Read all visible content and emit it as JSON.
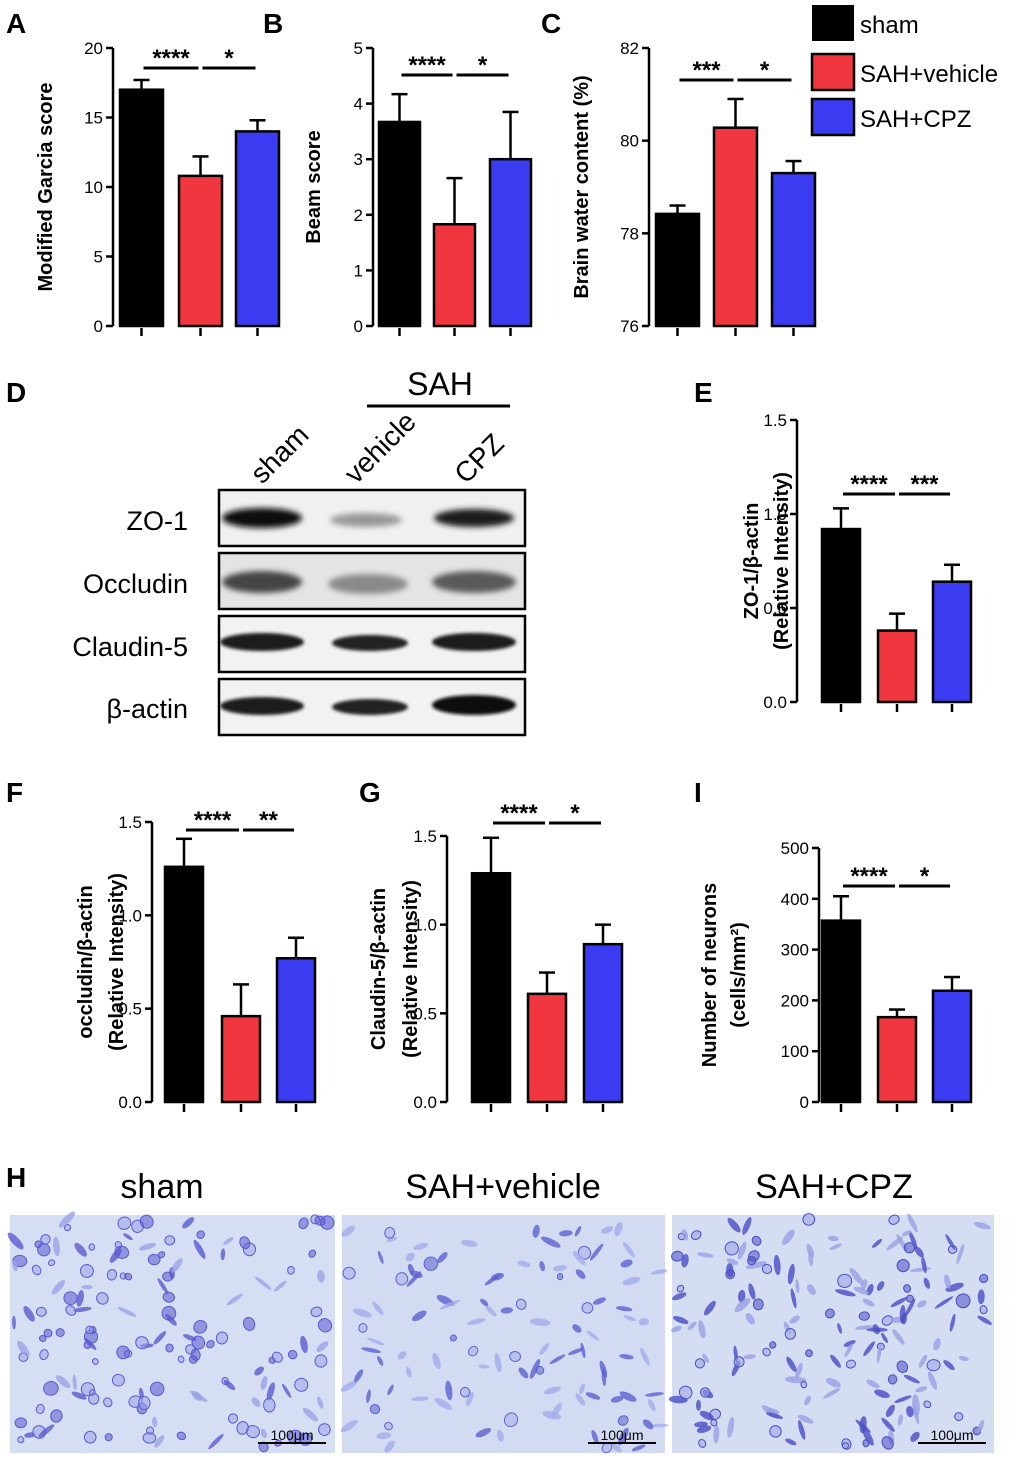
{
  "colors": {
    "sham": "#000000",
    "vehicle": "#f0373f",
    "cpz": "#3b3bf2",
    "axis": "#000000"
  },
  "legend": [
    {
      "label": "sham",
      "color": "#000000"
    },
    {
      "label": "SAH+vehicle",
      "color": "#f0373f"
    },
    {
      "label": "SAH+CPZ",
      "color": "#3b3bf2"
    }
  ],
  "western": {
    "panel_letter": "D",
    "sah_label": "SAH",
    "lanes": [
      "sham",
      "vehicle",
      "CPZ"
    ],
    "rows": [
      "ZO-1",
      "Occludin",
      "Claudin-5",
      "β-actin"
    ]
  },
  "histology": {
    "panel_letter": "H",
    "titles": [
      "sham",
      "SAH+vehicle",
      "SAH+CPZ"
    ],
    "scale_bar": "100μm"
  },
  "chart_data": [
    {
      "id": "A",
      "type": "bar",
      "panel_letter": "A",
      "ylabel": "Modified Garcia score",
      "ylabel2": "",
      "categories": [
        "sham",
        "SAH+vehicle",
        "SAH+CPZ"
      ],
      "values": [
        17,
        10.8,
        14
      ],
      "errors": [
        0.7,
        1.4,
        0.8
      ],
      "ylim": [
        0,
        20
      ],
      "yticks": [
        0,
        5,
        10,
        15,
        20
      ],
      "tick_labels": [
        "0",
        "5",
        "10",
        "15",
        "20"
      ],
      "significance": [
        "****",
        "*"
      ]
    },
    {
      "id": "B",
      "type": "bar",
      "panel_letter": "B",
      "ylabel": "Beam score",
      "ylabel2": "",
      "categories": [
        "sham",
        "SAH+vehicle",
        "SAH+CPZ"
      ],
      "values": [
        3.67,
        1.83,
        3.0
      ],
      "errors": [
        0.5,
        0.83,
        0.85
      ],
      "ylim": [
        0,
        5
      ],
      "yticks": [
        0,
        1,
        2,
        3,
        4,
        5
      ],
      "tick_labels": [
        "0",
        "1",
        "2",
        "3",
        "4",
        "5"
      ],
      "significance": [
        "****",
        "*"
      ]
    },
    {
      "id": "C",
      "type": "bar",
      "panel_letter": "C",
      "ylabel": "Brain water content (%)",
      "ylabel2": "",
      "categories": [
        "sham",
        "SAH+vehicle",
        "SAH+CPZ"
      ],
      "values": [
        78.42,
        80.28,
        79.3
      ],
      "errors": [
        0.18,
        0.62,
        0.26
      ],
      "ylim": [
        76,
        82
      ],
      "yticks": [
        76,
        78,
        80,
        82
      ],
      "tick_labels": [
        "76",
        "78",
        "80",
        "82"
      ],
      "significance": [
        "***",
        "*"
      ]
    },
    {
      "id": "E",
      "type": "bar",
      "panel_letter": "E",
      "ylabel": "ZO-1/β-actin",
      "ylabel2": "(Relative Intensity)",
      "categories": [
        "sham",
        "SAH+vehicle",
        "SAH+CPZ"
      ],
      "values": [
        0.92,
        0.38,
        0.64
      ],
      "errors": [
        0.11,
        0.09,
        0.09
      ],
      "ylim": [
        0,
        1.5
      ],
      "yticks": [
        0,
        0.5,
        1.0,
        1.5
      ],
      "tick_labels": [
        "0.0",
        "0.5",
        "1.0",
        "1.5"
      ],
      "significance": [
        "****",
        "***"
      ]
    },
    {
      "id": "F",
      "type": "bar",
      "panel_letter": "F",
      "ylabel": "occludin/β-actin",
      "ylabel2": "(Relative Intensity)",
      "categories": [
        "sham",
        "SAH+vehicle",
        "SAH+CPZ"
      ],
      "values": [
        1.26,
        0.46,
        0.77
      ],
      "errors": [
        0.15,
        0.17,
        0.11
      ],
      "ylim": [
        0,
        1.5
      ],
      "yticks": [
        0,
        0.5,
        1.0,
        1.5
      ],
      "tick_labels": [
        "0.0",
        "0.5",
        "1.0",
        "1.5"
      ],
      "significance": [
        "****",
        "**"
      ]
    },
    {
      "id": "G",
      "type": "bar",
      "panel_letter": "G",
      "ylabel": "Claudin-5/β-actin",
      "ylabel2": "(Relative Intensity)",
      "categories": [
        "sham",
        "SAH+vehicle",
        "SAH+CPZ"
      ],
      "values": [
        1.29,
        0.61,
        0.89
      ],
      "errors": [
        0.2,
        0.12,
        0.11
      ],
      "ylim": [
        0,
        1.5
      ],
      "yticks": [
        0,
        0.5,
        1.0,
        1.5
      ],
      "tick_labels": [
        "0.0",
        "0.5",
        "1.0",
        "1.5"
      ],
      "significance": [
        "****",
        "*"
      ]
    },
    {
      "id": "I",
      "type": "bar",
      "panel_letter": "I",
      "ylabel": "Number of neurons",
      "ylabel2": "(cells/mm²)",
      "categories": [
        "sham",
        "SAH+vehicle",
        "SAH+CPZ"
      ],
      "values": [
        357,
        167,
        219
      ],
      "errors": [
        48,
        15,
        27
      ],
      "ylim": [
        0,
        500
      ],
      "yticks": [
        0,
        100,
        200,
        300,
        400,
        500
      ],
      "tick_labels": [
        "0",
        "100",
        "200",
        "300",
        "400",
        "500"
      ],
      "significance": [
        "****",
        "*"
      ]
    }
  ]
}
